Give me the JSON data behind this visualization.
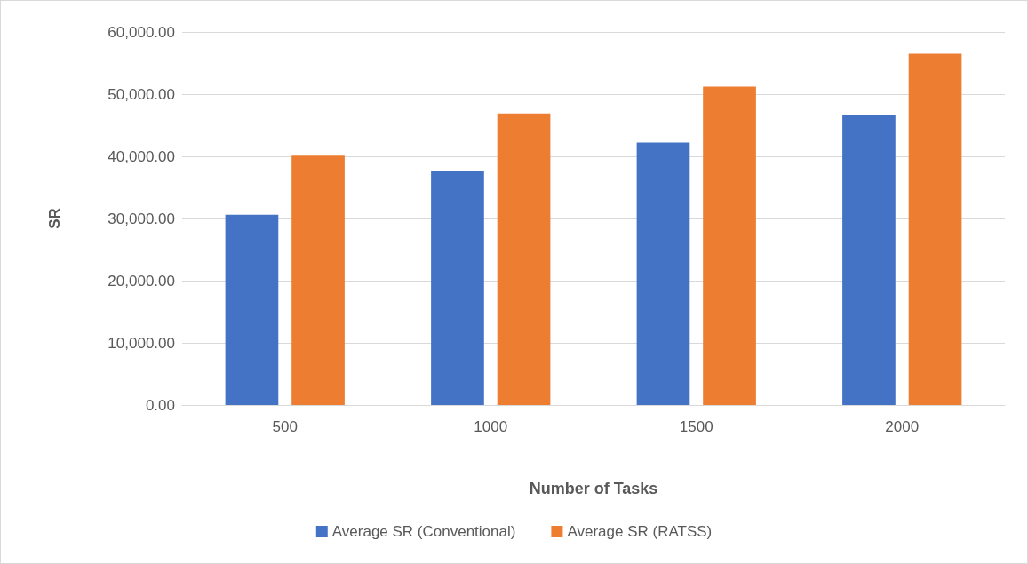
{
  "chart_data": {
    "type": "bar",
    "xlabel": "Number of Tasks",
    "ylabel": "SR",
    "categories": [
      "500",
      "1000",
      "1500",
      "2000"
    ],
    "series": [
      {
        "name": "Average SR (Conventional)",
        "color": "#4472c4",
        "values": [
          30600,
          37700,
          42200,
          46600
        ]
      },
      {
        "name": "Average SR (RATSS)",
        "color": "#ed7d31",
        "values": [
          40100,
          46900,
          51200,
          56500
        ]
      }
    ],
    "ylim": [
      0,
      60000
    ],
    "yticks": [
      {
        "value": 0,
        "label": "0.00"
      },
      {
        "value": 10000,
        "label": "10,000.00"
      },
      {
        "value": 20000,
        "label": "20,000.00"
      },
      {
        "value": 30000,
        "label": "30,000.00"
      },
      {
        "value": 40000,
        "label": "40,000.00"
      },
      {
        "value": 50000,
        "label": "50,000.00"
      },
      {
        "value": 60000,
        "label": "60,000.00"
      }
    ],
    "grid": "y",
    "legend": "bottom"
  }
}
